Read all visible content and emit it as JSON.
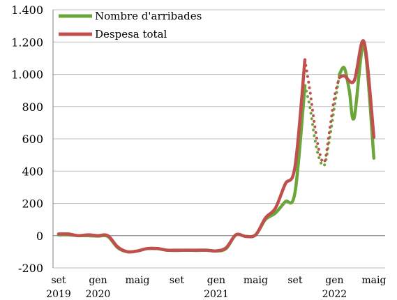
{
  "chart_data": {
    "type": "line",
    "title": "",
    "xlabel": "",
    "ylabel": "",
    "ylim": [
      -200,
      1400
    ],
    "yticks": [
      {
        "value": -200,
        "label": "-200"
      },
      {
        "value": 0,
        "label": "0"
      },
      {
        "value": 200,
        "label": "200"
      },
      {
        "value": 400,
        "label": "400"
      },
      {
        "value": 600,
        "label": "600"
      },
      {
        "value": 800,
        "label": "800"
      },
      {
        "value": 1000,
        "label": "1.000"
      },
      {
        "value": 1200,
        "label": "1.200"
      },
      {
        "value": 1400,
        "label": "1.400"
      }
    ],
    "xrange": [
      0,
      33
    ],
    "xticks": [
      {
        "x": 0,
        "label": "set",
        "year": "2019"
      },
      {
        "x": 4,
        "label": "gen",
        "year": "2020"
      },
      {
        "x": 8,
        "label": "maig",
        "year": ""
      },
      {
        "x": 12,
        "label": "set",
        "year": ""
      },
      {
        "x": 16,
        "label": "gen",
        "year": "2021"
      },
      {
        "x": 20,
        "label": "maig",
        "year": ""
      },
      {
        "x": 24,
        "label": "set",
        "year": ""
      },
      {
        "x": 28,
        "label": "gen",
        "year": "2022"
      },
      {
        "x": 32,
        "label": "maig",
        "year": ""
      }
    ],
    "legend_position": "top-left",
    "series": [
      {
        "name": "Nombre d'arribades",
        "color": "#6aa639",
        "segments": [
          {
            "style": "solid",
            "points": [
              [
                0,
                5
              ],
              [
                1,
                5
              ],
              [
                2,
                0
              ],
              [
                3,
                0
              ],
              [
                4,
                -3
              ],
              [
                5,
                -5
              ],
              [
                6,
                -75
              ],
              [
                7,
                -100
              ],
              [
                8,
                -95
              ],
              [
                9,
                -80
              ],
              [
                10,
                -80
              ],
              [
                11,
                -90
              ],
              [
                12,
                -92
              ],
              [
                13,
                -90
              ],
              [
                14,
                -92
              ],
              [
                15,
                -90
              ],
              [
                16,
                -95
              ],
              [
                17,
                -80
              ],
              [
                18,
                5
              ],
              [
                19,
                -5
              ],
              [
                20,
                5
              ],
              [
                21,
                100
              ],
              [
                22,
                140
              ],
              [
                23,
                210
              ],
              [
                24,
                270
              ],
              [
                25,
                930
              ]
            ]
          },
          {
            "style": "dotted",
            "points": [
              [
                25,
                930
              ],
              [
                25.5,
                800
              ],
              [
                26,
                600
              ],
              [
                26.5,
                470
              ],
              [
                27,
                440
              ],
              [
                27.5,
                600
              ],
              [
                28,
                800
              ],
              [
                28.5,
                1000
              ]
            ]
          },
          {
            "style": "solid",
            "points": [
              [
                28.5,
                1000
              ],
              [
                29,
                1040
              ],
              [
                29.5,
                900
              ],
              [
                30,
                730
              ],
              [
                31,
                1180
              ],
              [
                32,
                480
              ]
            ]
          }
        ]
      },
      {
        "name": "Despesa total",
        "color": "#c0504d",
        "segments": [
          {
            "style": "solid",
            "points": [
              [
                0,
                10
              ],
              [
                1,
                10
              ],
              [
                2,
                0
              ],
              [
                3,
                5
              ],
              [
                4,
                0
              ],
              [
                5,
                0
              ],
              [
                6,
                -70
              ],
              [
                7,
                -100
              ],
              [
                8,
                -95
              ],
              [
                9,
                -80
              ],
              [
                10,
                -80
              ],
              [
                11,
                -90
              ],
              [
                12,
                -90
              ],
              [
                13,
                -90
              ],
              [
                14,
                -90
              ],
              [
                15,
                -90
              ],
              [
                16,
                -95
              ],
              [
                17,
                -75
              ],
              [
                18,
                5
              ],
              [
                19,
                -5
              ],
              [
                20,
                5
              ],
              [
                21,
                110
              ],
              [
                22,
                170
              ],
              [
                23,
                320
              ],
              [
                24,
                430
              ],
              [
                25,
                1090
              ]
            ]
          },
          {
            "style": "dotted",
            "points": [
              [
                25,
                1090
              ],
              [
                25.5,
                900
              ],
              [
                26,
                680
              ],
              [
                26.5,
                510
              ],
              [
                27,
                460
              ],
              [
                27.5,
                650
              ],
              [
                28,
                860
              ],
              [
                28.5,
                980
              ]
            ]
          },
          {
            "style": "solid",
            "points": [
              [
                28.5,
                980
              ],
              [
                29,
                990
              ],
              [
                30,
                960
              ],
              [
                31,
                1200
              ],
              [
                32,
                610
              ]
            ]
          }
        ]
      }
    ]
  }
}
